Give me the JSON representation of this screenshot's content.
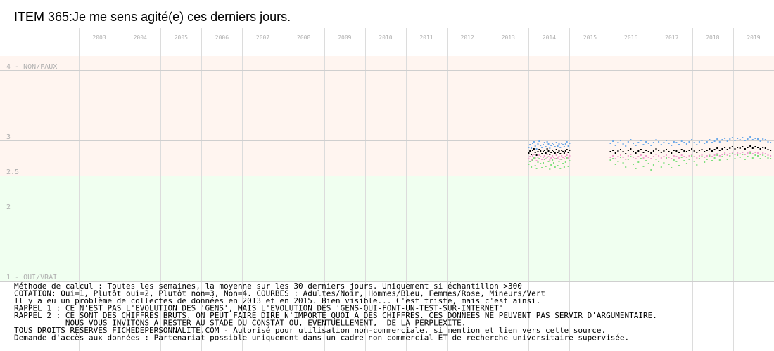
{
  "chart_data": {
    "type": "scatter",
    "title": "ITEM 365:Je me sens agité(e) ces derniers jours.",
    "x_tick_labels": [
      "2003",
      "2004",
      "2005",
      "2006",
      "2007",
      "2008",
      "2009",
      "2010",
      "2011",
      "2012",
      "2013",
      "2014",
      "2015",
      "2016",
      "2017",
      "2018",
      "2019"
    ],
    "xlim": [
      "2003-01-01",
      "2020-01-01"
    ],
    "ylim": [
      1,
      4.2
    ],
    "y_tick_labels": [
      {
        "value": 4,
        "label": "4 - NON/FAUX"
      },
      {
        "value": 3,
        "label": "3"
      },
      {
        "value": 2.5,
        "label": "2.5"
      },
      {
        "value": 2,
        "label": "2"
      },
      {
        "value": 1,
        "label": "1 - OUI/VRAI"
      }
    ],
    "bands": [
      {
        "from": 2.5,
        "to": 4.2,
        "color": "#fff5f0"
      },
      {
        "from": 1,
        "to": 2.5,
        "color": "#f0fff0"
      }
    ],
    "grid": true,
    "series": [
      {
        "color": "#000000",
        "segments": [
          {
            "start": "2014-01-01",
            "end": "2015-01-01",
            "values": [
              2.82,
              2.85,
              2.8,
              2.86,
              2.88,
              2.83,
              2.79,
              2.84,
              2.87,
              2.85,
              2.81,
              2.84,
              2.86,
              2.82,
              2.88,
              2.85,
              2.8,
              2.83,
              2.86,
              2.84,
              2.82,
              2.87,
              2.83,
              2.85,
              2.81,
              2.86,
              2.84,
              2.82,
              2.85,
              2.87,
              2.83,
              2.86
            ]
          },
          {
            "start": "2016-01-01",
            "end": "2019-12-01",
            "values": [
              2.84,
              2.86,
              2.82,
              2.85,
              2.87,
              2.84,
              2.81,
              2.86,
              2.88,
              2.84,
              2.82,
              2.85,
              2.87,
              2.83,
              2.86,
              2.84,
              2.82,
              2.85,
              2.88,
              2.86,
              2.83,
              2.85,
              2.87,
              2.84,
              2.82,
              2.86,
              2.85,
              2.83,
              2.87,
              2.85,
              2.84,
              2.86,
              2.88,
              2.85,
              2.83,
              2.86,
              2.87,
              2.84,
              2.86,
              2.88,
              2.85,
              2.87,
              2.89,
              2.86,
              2.88,
              2.9,
              2.87,
              2.89,
              2.91,
              2.88,
              2.9,
              2.89,
              2.91,
              2.88,
              2.9,
              2.92,
              2.89,
              2.91,
              2.9,
              2.88,
              2.9,
              2.89,
              2.87,
              2.86
            ]
          }
        ]
      },
      {
        "color": "#6aa8e8",
        "segments": [
          {
            "start": "2014-01-01",
            "end": "2015-01-01",
            "values": [
              2.9,
              2.94,
              2.89,
              2.96,
              2.98,
              2.92,
              2.88,
              2.95,
              2.99,
              2.93,
              2.9,
              2.94,
              2.97,
              2.91,
              2.98,
              2.95,
              2.89,
              2.93,
              2.96,
              2.94,
              2.91,
              2.97,
              2.92,
              2.95,
              2.9,
              2.96,
              2.94,
              2.91,
              2.95,
              2.98,
              2.92,
              2.96
            ]
          },
          {
            "start": "2016-01-01",
            "end": "2019-12-01",
            "values": [
              2.96,
              2.99,
              2.93,
              2.97,
              3.0,
              2.95,
              2.92,
              2.98,
              3.01,
              2.96,
              2.93,
              2.97,
              3.0,
              2.94,
              2.98,
              2.96,
              2.93,
              2.97,
              3.01,
              2.98,
              2.94,
              2.97,
              3.0,
              2.96,
              2.93,
              2.98,
              2.97,
              2.94,
              2.99,
              2.97,
              2.95,
              2.98,
              3.01,
              2.97,
              2.94,
              2.98,
              3.0,
              2.96,
              2.98,
              3.01,
              2.97,
              2.99,
              3.02,
              2.98,
              3.01,
              3.03,
              2.99,
              3.02,
              3.04,
              3.0,
              3.03,
              3.01,
              3.04,
              3.0,
              3.02,
              3.05,
              3.01,
              3.03,
              3.02,
              2.99,
              3.02,
              3.01,
              2.98,
              2.97
            ]
          }
        ]
      },
      {
        "color": "#f0a0d0",
        "segments": [
          {
            "start": "2014-01-01",
            "end": "2015-01-01",
            "values": [
              2.74,
              2.77,
              2.72,
              2.78,
              2.8,
              2.75,
              2.71,
              2.76,
              2.79,
              2.77,
              2.73,
              2.76,
              2.78,
              2.74,
              2.8,
              2.77,
              2.72,
              2.75,
              2.78,
              2.76,
              2.74,
              2.79,
              2.75,
              2.77,
              2.73,
              2.78,
              2.76,
              2.74,
              2.77,
              2.79,
              2.75,
              2.78
            ]
          },
          {
            "start": "2016-01-01",
            "end": "2019-12-01",
            "values": [
              2.76,
              2.78,
              2.74,
              2.77,
              2.79,
              2.76,
              2.73,
              2.78,
              2.8,
              2.76,
              2.74,
              2.77,
              2.79,
              2.75,
              2.78,
              2.76,
              2.74,
              2.77,
              2.8,
              2.78,
              2.75,
              2.77,
              2.79,
              2.76,
              2.74,
              2.78,
              2.77,
              2.75,
              2.79,
              2.77,
              2.76,
              2.78,
              2.8,
              2.77,
              2.75,
              2.78,
              2.79,
              2.76,
              2.78,
              2.8,
              2.77,
              2.79,
              2.81,
              2.78,
              2.8,
              2.82,
              2.79,
              2.81,
              2.83,
              2.8,
              2.82,
              2.81,
              2.83,
              2.8,
              2.82,
              2.84,
              2.81,
              2.83,
              2.82,
              2.8,
              2.82,
              2.81,
              2.79,
              2.78
            ]
          }
        ]
      },
      {
        "color": "#80e080",
        "segments": [
          {
            "start": "2014-01-01",
            "end": "2015-01-01",
            "values": [
              2.66,
              2.7,
              2.62,
              2.72,
              2.75,
              2.64,
              2.6,
              2.69,
              2.74,
              2.67,
              2.61,
              2.68,
              2.73,
              2.63,
              2.76,
              2.7,
              2.59,
              2.65,
              2.72,
              2.68,
              2.62,
              2.74,
              2.64,
              2.7,
              2.6,
              2.73,
              2.67,
              2.62,
              2.69,
              2.75,
              2.63,
              2.71
            ]
          },
          {
            "start": "2016-01-01",
            "end": "2019-12-01",
            "values": [
              2.72,
              2.74,
              2.66,
              2.7,
              2.76,
              2.68,
              2.62,
              2.73,
              2.77,
              2.66,
              2.6,
              2.69,
              2.74,
              2.63,
              2.71,
              2.67,
              2.58,
              2.65,
              2.73,
              2.7,
              2.62,
              2.68,
              2.75,
              2.66,
              2.61,
              2.72,
              2.7,
              2.64,
              2.76,
              2.71,
              2.67,
              2.73,
              2.78,
              2.7,
              2.65,
              2.74,
              2.77,
              2.69,
              2.73,
              2.78,
              2.71,
              2.75,
              2.79,
              2.72,
              2.77,
              2.8,
              2.73,
              2.78,
              2.81,
              2.74,
              2.79,
              2.76,
              2.8,
              2.73,
              2.77,
              2.82,
              2.75,
              2.79,
              2.78,
              2.74,
              2.79,
              2.77,
              2.75,
              2.74
            ]
          }
        ]
      }
    ]
  },
  "notes": [
    "Méthode de calcul : Toutes les semaines, la moyenne sur les 30 derniers jours. Uniquement si échantillon >300",
    "COTATION: Oui=1, Plutôt oui=2, Plutôt non=3, Non=4. COURBES : Adultes/Noir, Hommes/Bleu, Femmes/Rose, Mineurs/Vert",
    "Il y a eu un problème de collectes de données en 2013 et en 2015. Bien visible... C'est triste, mais c'est ainsi.",
    "RAPPEL 1 : CE N'EST PAS L'EVOLUTION DES 'GENS', MAIS L'EVOLUTION DES 'GENS-QUI-FONT-UN-TEST-SUR-INTERNET'",
    "RAPPEL 2 : CE SONT DES CHIFFRES BRUTS. ON PEUT FAIRE DIRE N'IMPORTE QUOI A DES CHIFFRES. CES DONNEES NE PEUVENT PAS SERVIR D'ARGUMENTAIRE.",
    "           NOUS VOUS INVITONS A RESTER AU STADE DU CONSTAT OU, EVENTUELLEMENT,  DE LA PERPLEXITE.",
    "TOUS DROITS RESERVES FICHEDEPERSONNALITE.COM - Autorisé pour utilisation non-commerciale, si mention et lien vers cette source.",
    "Demande d'accès aux données : Partenariat possible uniquement dans un cadre non-commercial ET de recherche universitaire supervisée."
  ]
}
